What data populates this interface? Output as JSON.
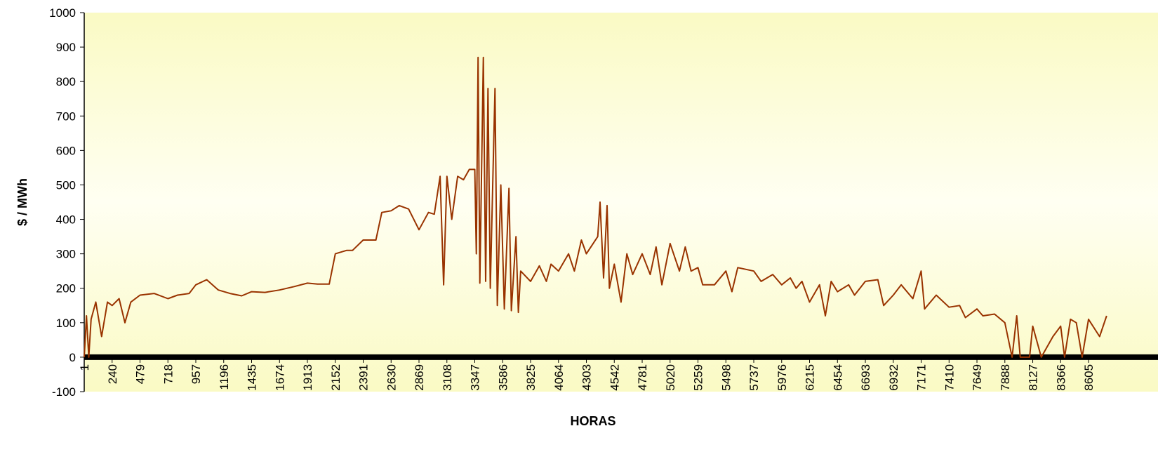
{
  "chart_data": {
    "type": "line",
    "xlabel": "HORAS",
    "ylabel": "$ / MWh",
    "color": "#993300",
    "x": [
      1,
      20,
      40,
      60,
      100,
      150,
      200,
      240,
      300,
      350,
      400,
      479,
      600,
      718,
      800,
      900,
      957,
      1050,
      1150,
      1250,
      1350,
      1435,
      1550,
      1674,
      1800,
      1913,
      2000,
      2100,
      2152,
      2250,
      2300,
      2391,
      2500,
      2550,
      2630,
      2700,
      2780,
      2869,
      2950,
      3000,
      3050,
      3080,
      3108,
      3150,
      3200,
      3250,
      3300,
      3347,
      3360,
      3375,
      3390,
      3420,
      3440,
      3460,
      3480,
      3520,
      3540,
      3570,
      3600,
      3640,
      3660,
      3700,
      3720,
      3740,
      3825,
      3900,
      3960,
      4000,
      4064,
      4150,
      4200,
      4260,
      4303,
      4400,
      4420,
      4450,
      4480,
      4500,
      4542,
      4600,
      4650,
      4700,
      4781,
      4850,
      4900,
      4950,
      5020,
      5100,
      5150,
      5200,
      5259,
      5300,
      5400,
      5498,
      5550,
      5600,
      5737,
      5800,
      5900,
      5976,
      6050,
      6100,
      6150,
      6215,
      6300,
      6350,
      6400,
      6454,
      6550,
      6600,
      6693,
      6800,
      6850,
      6932,
      7000,
      7100,
      7171,
      7200,
      7300,
      7410,
      7500,
      7550,
      7649,
      7700,
      7800,
      7888,
      7950,
      7990,
      8020,
      8100,
      8127,
      8200,
      8300,
      8366,
      8400,
      8450,
      8500,
      8550,
      8605,
      8700,
      8760
    ],
    "values": [
      0,
      120,
      0,
      110,
      160,
      60,
      160,
      150,
      170,
      100,
      160,
      180,
      185,
      170,
      180,
      185,
      210,
      225,
      195,
      185,
      178,
      190,
      188,
      195,
      205,
      215,
      212,
      212,
      300,
      310,
      310,
      340,
      340,
      420,
      425,
      440,
      430,
      370,
      420,
      415,
      525,
      210,
      525,
      400,
      525,
      515,
      545,
      545,
      300,
      870,
      215,
      870,
      220,
      780,
      200,
      780,
      150,
      500,
      140,
      490,
      135,
      350,
      130,
      250,
      220,
      265,
      220,
      270,
      250,
      300,
      250,
      340,
      300,
      350,
      450,
      230,
      440,
      200,
      270,
      160,
      300,
      240,
      300,
      240,
      320,
      210,
      330,
      250,
      320,
      250,
      260,
      210,
      210,
      250,
      190,
      260,
      250,
      220,
      240,
      210,
      230,
      200,
      220,
      160,
      210,
      120,
      220,
      190,
      210,
      180,
      220,
      225,
      150,
      180,
      210,
      170,
      250,
      140,
      180,
      145,
      150,
      115,
      140,
      120,
      125,
      100,
      0,
      120,
      0,
      0,
      90,
      0,
      60,
      90,
      0,
      110,
      100,
      0,
      110,
      60,
      120
    ],
    "xlim": [
      1,
      9200
    ],
    "xticks": [
      1,
      240,
      479,
      718,
      957,
      1196,
      1435,
      1674,
      1913,
      2152,
      2391,
      2630,
      2869,
      3108,
      3347,
      3586,
      3825,
      4064,
      4303,
      4542,
      4781,
      5020,
      5259,
      5498,
      5737,
      5976,
      6215,
      6454,
      6693,
      6932,
      7171,
      7410,
      7649,
      7888,
      8127,
      8366,
      8605
    ],
    "ylim": [
      -100,
      1000
    ],
    "yticks": [
      -100,
      0,
      100,
      200,
      300,
      400,
      500,
      600,
      700,
      800,
      900,
      1000
    ]
  }
}
